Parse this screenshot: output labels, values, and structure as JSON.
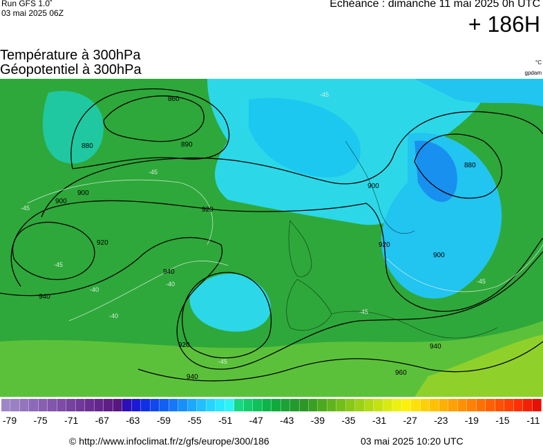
{
  "header": {
    "run_label": "Run GFS 1.0˚",
    "run_date": "03 mai 2025 06Z",
    "echeance": "Echéance : dimanche 11 mai 2025 0h UTC",
    "lead_time": "+ 186H"
  },
  "titles": {
    "line1": "Température à 300hPa",
    "line2": "Géopotentiel à 300hPa",
    "unit_temp": "°C",
    "unit_geo": "gpdam"
  },
  "contour_labels": {
    "geopotential": [
      "860",
      "880",
      "880",
      "890",
      "900",
      "900",
      "900",
      "900",
      "920",
      "920",
      "920",
      "920",
      "940",
      "940",
      "940",
      "940",
      "960"
    ],
    "temperature": [
      "-45",
      "-45",
      "-45",
      "-45",
      "-40",
      "-40",
      "-40",
      "-45",
      "-45",
      "-45"
    ]
  },
  "legend": {
    "colors": [
      "#9e86c8",
      "#9a80c4",
      "#9474be",
      "#8c68b8",
      "#8860b2",
      "#8256ac",
      "#7c4ca6",
      "#7642a0",
      "#703898",
      "#6a2e92",
      "#64268c",
      "#5e1e86",
      "#581680",
      "#2d0fb8",
      "#1a1ad6",
      "#1030e6",
      "#1048ee",
      "#1060f4",
      "#1478f8",
      "#1890fa",
      "#1ca8fc",
      "#20c0fe",
      "#24d6ff",
      "#28e8ff",
      "#2cf4f4",
      "#18d884",
      "#14cc6c",
      "#10c05a",
      "#0cb44a",
      "#10aa3c",
      "#1aa234",
      "#229a2c",
      "#2c9626",
      "#3aa021",
      "#4caa1e",
      "#60b41c",
      "#74be1a",
      "#88c818",
      "#9cd216",
      "#b0da14",
      "#c4e212",
      "#d8ea10",
      "#ecf20e",
      "#fff00c",
      "#ffe00a",
      "#ffd008",
      "#ffc006",
      "#ffb004",
      "#ffa004",
      "#ff9004",
      "#ff8004",
      "#ff7004",
      "#ff6004",
      "#ff5004",
      "#ff4004",
      "#ff3004",
      "#f42004",
      "#e81004"
    ],
    "ticks": [
      "-79",
      "-75",
      "-71",
      "-67",
      "-63",
      "-59",
      "-55",
      "-51",
      "-47",
      "-43",
      "-39",
      "-35",
      "-31",
      "-27",
      "-23",
      "-19",
      "-15",
      "-11"
    ]
  },
  "footer": {
    "url": "© http://www.infoclimat.fr/z/gfs/europe/300/186",
    "timestamp": "03 mai 2025 10:20 UTC"
  }
}
